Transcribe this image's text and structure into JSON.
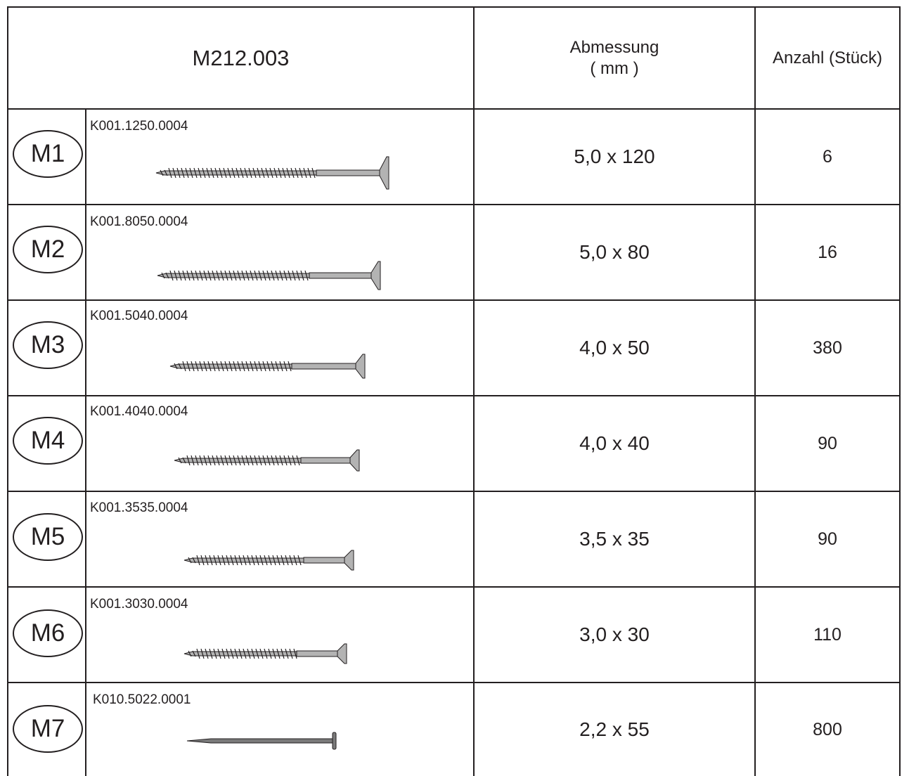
{
  "header": {
    "title": "M212.003",
    "dimension_label_line1": "Abmessung",
    "dimension_label_line2": "( mm )",
    "quantity_label": "Anzahl (Stück)"
  },
  "rows": [
    {
      "id": "M1",
      "part_code": "K001.1250.0004",
      "dimension": "5,0 x 120",
      "quantity": "6",
      "icon": "wood-screw-icon"
    },
    {
      "id": "M2",
      "part_code": "K001.8050.0004",
      "dimension": "5,0 x 80",
      "quantity": "16",
      "icon": "wood-screw-icon"
    },
    {
      "id": "M3",
      "part_code": "K001.5040.0004",
      "dimension": "4,0 x 50",
      "quantity": "380",
      "icon": "wood-screw-icon"
    },
    {
      "id": "M4",
      "part_code": "K001.4040.0004",
      "dimension": "4,0 x 40",
      "quantity": "90",
      "icon": "wood-screw-icon"
    },
    {
      "id": "M5",
      "part_code": "K001.3535.0004",
      "dimension": "3,5 x 35",
      "quantity": "90",
      "icon": "wood-screw-icon"
    },
    {
      "id": "M6",
      "part_code": "K001.3030.0004",
      "dimension": "3,0 x 30",
      "quantity": "110",
      "icon": "wood-screw-icon"
    },
    {
      "id": "M7",
      "part_code": "K010.5022.0001",
      "dimension": "2,2 x 55",
      "quantity": "800",
      "icon": "nail-icon"
    }
  ],
  "colors": {
    "line": "#231f20",
    "screw_fill": "#b3b3b3",
    "nail_fill": "#7a7a7a"
  }
}
